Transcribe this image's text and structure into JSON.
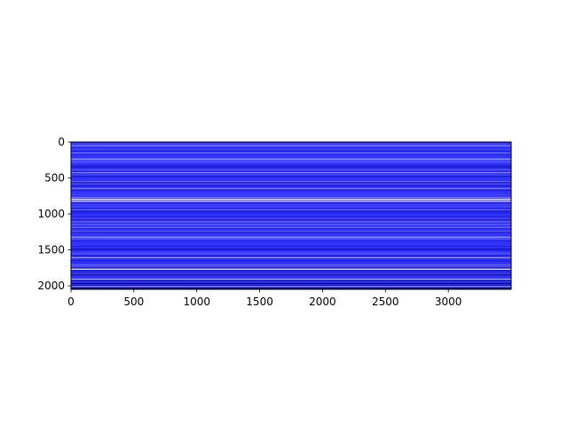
{
  "chart_data": {
    "type": "heatmap",
    "title": "",
    "xlabel": "",
    "ylabel": "",
    "xlim": [
      0,
      3500
    ],
    "ylim": [
      2048,
      0
    ],
    "y_axis_inverted": true,
    "grid": false,
    "legend": "none",
    "colorbar": false,
    "colormap": "blue-dominant (white to blue to dark navy)",
    "x_ticks": [
      {
        "value": 0,
        "label": "0"
      },
      {
        "value": 500,
        "label": "500"
      },
      {
        "value": 1000,
        "label": "1000"
      },
      {
        "value": 1500,
        "label": "1500"
      },
      {
        "value": 2000,
        "label": "2000"
      },
      {
        "value": 2500,
        "label": "2500"
      },
      {
        "value": 3000,
        "label": "3000"
      }
    ],
    "y_ticks": [
      {
        "value": 0,
        "label": "0"
      },
      {
        "value": 500,
        "label": "500"
      },
      {
        "value": 1000,
        "label": "1000"
      },
      {
        "value": 1500,
        "label": "1500"
      },
      {
        "value": 2000,
        "label": "2000"
      }
    ],
    "image": {
      "rows": 2048,
      "columns": 3500,
      "base_color": "#3333ff",
      "pattern": "horizontal streaks: each row roughly constant across columns",
      "notable_bands": [
        {
          "row": 45,
          "color": "#8080ff"
        },
        {
          "row": 120,
          "color": "#1a1aee"
        },
        {
          "row": 230,
          "color": "#9999ff"
        },
        {
          "row": 330,
          "color": "#2020cc"
        },
        {
          "row": 420,
          "color": "#8c8cff"
        },
        {
          "row": 560,
          "color": "#1111aa"
        },
        {
          "row": 640,
          "color": "#7777ff"
        },
        {
          "row": 790,
          "color": "#f2f2ff"
        },
        {
          "row": 815,
          "color": "#e0e0ff"
        },
        {
          "row": 960,
          "color": "#1a1add"
        },
        {
          "row": 1180,
          "color": "#6f6fff"
        },
        {
          "row": 1320,
          "color": "#8a8aff"
        },
        {
          "row": 1480,
          "color": "#1515bb"
        },
        {
          "row": 1600,
          "color": "#9a9aff"
        },
        {
          "row": 1760,
          "color": "#ffffff"
        },
        {
          "row": 1840,
          "color": "#0a0a99"
        },
        {
          "row": 1900,
          "color": "#b0b0ff"
        },
        {
          "row": 1960,
          "color": "#000088"
        },
        {
          "row": 2000,
          "color": "#9090ff"
        },
        {
          "row": 2030,
          "color": "#000066"
        }
      ]
    }
  }
}
